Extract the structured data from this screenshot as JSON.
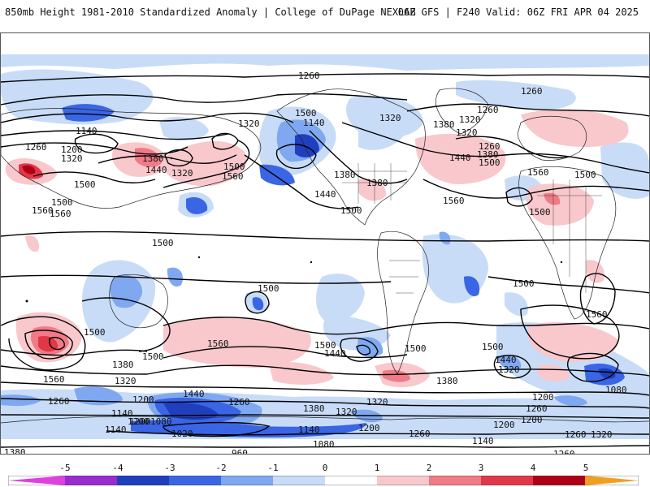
{
  "header": {
    "title": "850mb Height 1981-2010 Standardized Anomaly | College of DuPage NEXLAB",
    "run_info": "06Z GFS | F240 Valid: 06Z FRI APR 04 2025"
  },
  "contour_labels": [
    {
      "text": "1260",
      "id": "c1"
    },
    {
      "text": "1320",
      "id": "c2"
    },
    {
      "text": "1140",
      "id": "c3"
    },
    {
      "text": "1260",
      "id": "c4"
    },
    {
      "text": "1200",
      "id": "c5"
    },
    {
      "text": "1320",
      "id": "c6"
    },
    {
      "text": "1380",
      "id": "c7"
    },
    {
      "text": "1440",
      "id": "c8"
    },
    {
      "text": "1500",
      "id": "c9"
    },
    {
      "text": "1560",
      "id": "c10"
    },
    {
      "text": "1320",
      "id": "c11"
    },
    {
      "text": "1500",
      "id": "c12"
    },
    {
      "text": "1560",
      "id": "c13"
    },
    {
      "text": "1500",
      "id": "c14"
    },
    {
      "text": "1560",
      "id": "c15"
    },
    {
      "text": "1320",
      "id": "c16"
    },
    {
      "text": "1380",
      "id": "c17"
    },
    {
      "text": "1380",
      "id": "c18"
    },
    {
      "text": "1440",
      "id": "c19"
    },
    {
      "text": "1500",
      "id": "c20"
    },
    {
      "text": "1500",
      "id": "c21"
    },
    {
      "text": "1320",
      "id": "c22"
    },
    {
      "text": "1260",
      "id": "c23"
    },
    {
      "text": "1380",
      "id": "c24"
    },
    {
      "text": "1440",
      "id": "c25"
    },
    {
      "text": "1500",
      "id": "c26"
    },
    {
      "text": "1560",
      "id": "c27"
    },
    {
      "text": "1560",
      "id": "c28"
    },
    {
      "text": "1500",
      "id": "c29"
    },
    {
      "text": "1500",
      "id": "c30"
    },
    {
      "text": "1500",
      "id": "c31"
    },
    {
      "text": "1500",
      "id": "c32"
    },
    {
      "text": "1500",
      "id": "c33"
    },
    {
      "text": "1500",
      "id": "c34"
    },
    {
      "text": "1560",
      "id": "c35"
    },
    {
      "text": "1560",
      "id": "c36"
    },
    {
      "text": "1560",
      "id": "c37"
    },
    {
      "text": "1380",
      "id": "c38"
    },
    {
      "text": "1320",
      "id": "c39"
    },
    {
      "text": "1500",
      "id": "c40"
    },
    {
      "text": "1500",
      "id": "c41"
    },
    {
      "text": "1440",
      "id": "c42"
    },
    {
      "text": "1500",
      "id": "c43"
    },
    {
      "text": "1500",
      "id": "c44"
    },
    {
      "text": "1440",
      "id": "c45"
    },
    {
      "text": "1320",
      "id": "c46"
    },
    {
      "text": "1380",
      "id": "c47"
    },
    {
      "text": "1320",
      "id": "c48"
    },
    {
      "text": "1260",
      "id": "c49"
    },
    {
      "text": "1200",
      "id": "c50"
    },
    {
      "text": "1440",
      "id": "c51"
    },
    {
      "text": "1260",
      "id": "c52"
    },
    {
      "text": "1200",
      "id": "c53"
    },
    {
      "text": "1140",
      "id": "c54"
    },
    {
      "text": "1200",
      "id": "c55"
    },
    {
      "text": "1080",
      "id": "c56"
    },
    {
      "text": "1140",
      "id": "c57"
    },
    {
      "text": "1020",
      "id": "c58"
    },
    {
      "text": "960",
      "id": "c59"
    },
    {
      "text": "1020",
      "id": "c60"
    },
    {
      "text": "1140",
      "id": "c61"
    },
    {
      "text": "1200",
      "id": "c62"
    },
    {
      "text": "1080",
      "id": "c63"
    },
    {
      "text": "1140",
      "id": "c64"
    },
    {
      "text": "1200",
      "id": "c65"
    },
    {
      "text": "1380",
      "id": "c66"
    },
    {
      "text": "1320",
      "id": "c67"
    },
    {
      "text": "1260",
      "id": "c68"
    },
    {
      "text": "1140",
      "id": "c69"
    },
    {
      "text": "1080",
      "id": "c70"
    },
    {
      "text": "1260",
      "id": "c71"
    },
    {
      "text": "1200",
      "id": "c72"
    },
    {
      "text": "1260",
      "id": "c73"
    },
    {
      "text": "1320",
      "id": "c74"
    },
    {
      "text": "1260",
      "id": "c75"
    },
    {
      "text": "1380",
      "id": "c76"
    },
    {
      "text": "1320",
      "id": "c77"
    },
    {
      "text": "1260",
      "id": "c78"
    },
    {
      "text": "1200",
      "id": "c79"
    },
    {
      "text": "1380",
      "id": "c80"
    },
    {
      "text": "1200",
      "id": "c81"
    },
    {
      "text": "1140",
      "id": "c82"
    },
    {
      "text": "1260",
      "id": "c83"
    }
  ],
  "colorbar": {
    "ticks": [
      "-5",
      "-4",
      "-3",
      "-2",
      "-1",
      "0",
      "1",
      "2",
      "3",
      "4",
      "5"
    ],
    "colors": {
      "below_-5": "#e040e0",
      "-5_-4": "#9a2bd0",
      "-4_-3": "#1f3fbf",
      "-3_-2": "#3a66e6",
      "-2_-1": "#7fa8f0",
      "-1_0": "#c8dcf8",
      "0_1": "#ffffff",
      "1_2": "#f8c8cc",
      "2_3": "#f07a86",
      "3_4": "#e03848",
      "4_5": "#b00016",
      "5_plus": "#f0a020",
      "above_max": "#f0d020"
    }
  },
  "colors": {
    "negative_light": "#c8dcf8",
    "negative_mid": "#7fa8f0",
    "negative_strong": "#3a66e6",
    "negative_deep": "#1f3fbf",
    "positive_light": "#f8c8cc",
    "positive_mid": "#f07a86",
    "positive_strong": "#e03848",
    "positive_deep": "#b00016"
  }
}
